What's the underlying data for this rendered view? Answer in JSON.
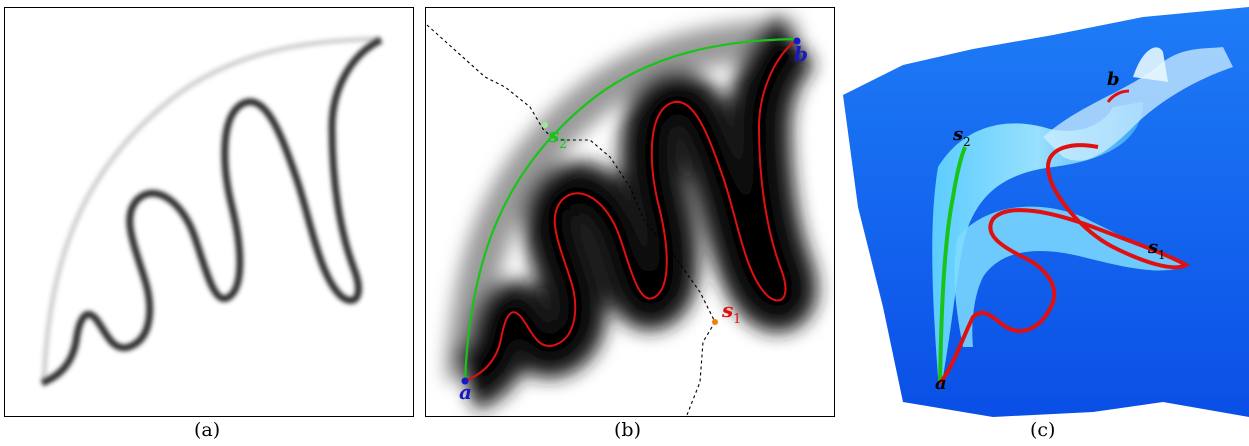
{
  "captions": {
    "a": "(a)",
    "b": "(b)",
    "c": "(c)"
  },
  "labels": {
    "a_main": "a",
    "b_main": "b",
    "s1_main": "s",
    "s1_sub": "1",
    "s2_main": "s",
    "s2_sub": "2"
  },
  "colors": {
    "curve_dark": "#3a3a3a",
    "curve_faint": "#d0d0d0",
    "red_path": "#e01010",
    "green_path": "#18c418",
    "endpoint_blue": "#1818c8",
    "orange_point": "#f08000",
    "surface_blue": "#0a5cf0",
    "surface_light": "#5fd2ff"
  }
}
